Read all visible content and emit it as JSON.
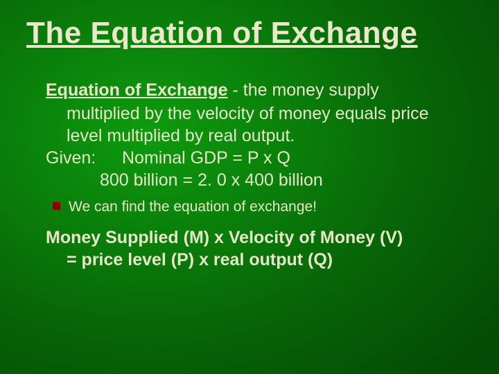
{
  "colors": {
    "background_center": "#0d9b0d",
    "background_edge": "#044a04",
    "text": "#e8e6c8",
    "bullet_square": "#8b0000"
  },
  "typography": {
    "title_fontsize": 44,
    "body_fontsize": 25,
    "bullet_fontsize": 21,
    "font_family": "Arial"
  },
  "slide": {
    "title": "The Equation of Exchange",
    "definition_term": "Equation of Exchange",
    "definition_rest": " - the money supply",
    "definition_line2": "multiplied by the velocity of money equals price",
    "definition_line3": "level multiplied by real output.",
    "given_label": "Given:",
    "given_equation": "Nominal GDP = P x Q",
    "calc_line": "800 billion =   2. 0  x  400 billion",
    "bullet_text": "We can find the equation of exchange!",
    "formula_line1": "Money Supplied (M)  x  Velocity of Money (V)",
    "formula_line2": "= price level (P)  x  real output (Q)"
  }
}
